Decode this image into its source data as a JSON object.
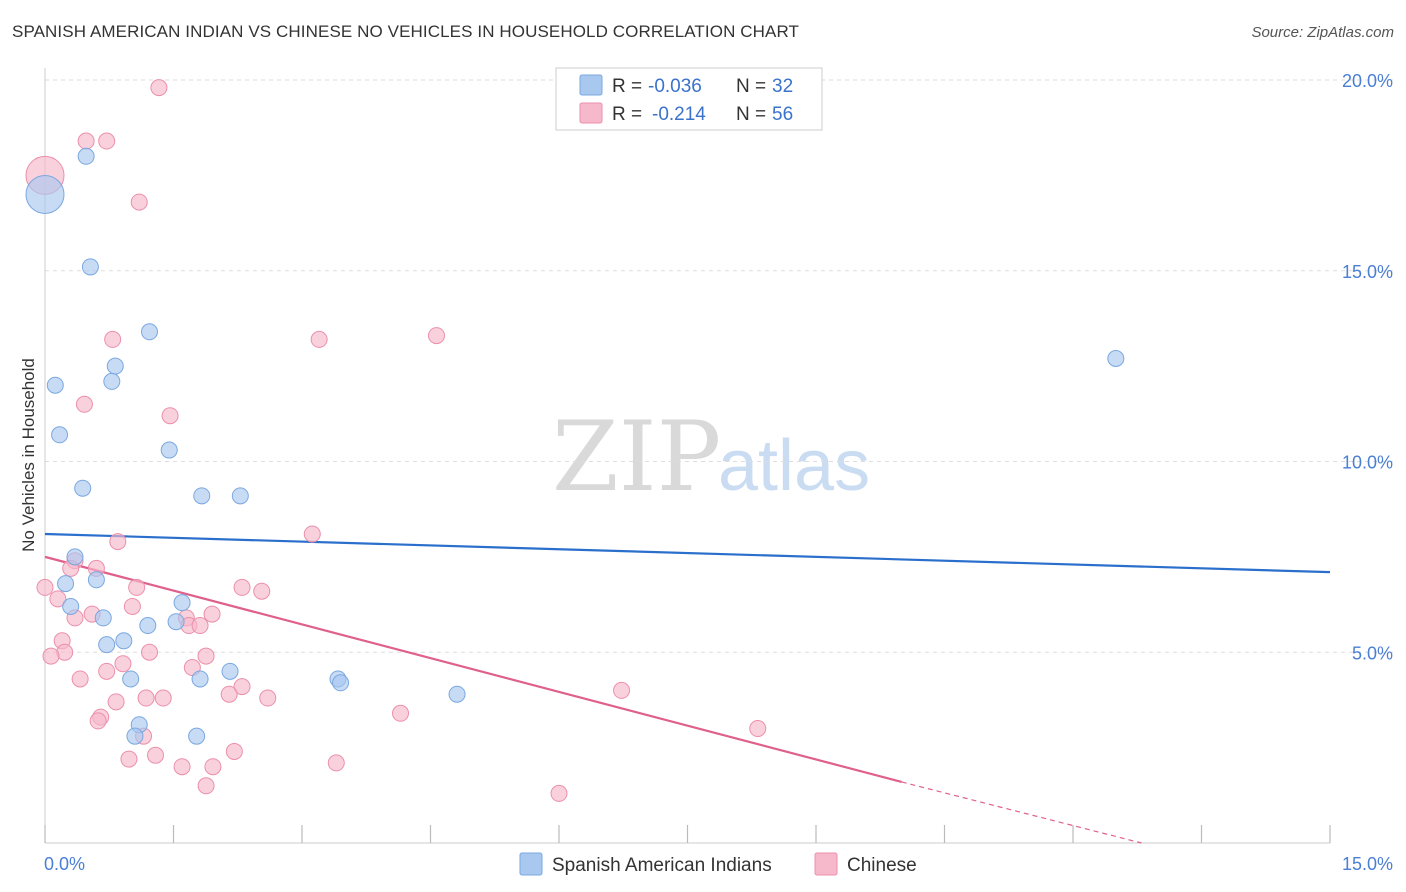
{
  "header": {
    "title": "SPANISH AMERICAN INDIAN VS CHINESE NO VEHICLES IN HOUSEHOLD CORRELATION CHART",
    "source": "Source: ZipAtlas.com"
  },
  "watermark": {
    "zip": "ZIP",
    "atlas": "atlas"
  },
  "stats_legend": {
    "rows": [
      {
        "r_label": "R =",
        "r_value": "-0.036",
        "n_label": "N =",
        "n_value": "32",
        "color": "#a9c8f0"
      },
      {
        "r_label": "R =",
        "r_value": "-0.214",
        "n_label": "N =",
        "n_value": "56",
        "color": "#f6b8cb"
      }
    ]
  },
  "colors": {
    "blue_fill": "#a9c8f0",
    "blue_stroke": "#7aa8e0",
    "blue_line": "#2a6fcc",
    "pink_fill": "#f6b8cb",
    "pink_stroke": "#ec8fab",
    "pink_line": "#e0608c",
    "value_text": "#3a72cc"
  },
  "chart_data": {
    "type": "scatter",
    "title": "SPANISH AMERICAN INDIAN VS CHINESE NO VEHICLES IN HOUSEHOLD CORRELATION CHART",
    "xlabel": "",
    "ylabel": "No Vehicles in Household",
    "xlim": [
      0,
      15
    ],
    "ylim": [
      0,
      20
    ],
    "x_tick_labels": [
      "0.0%",
      "15.0%"
    ],
    "y_ticks": [
      5,
      10,
      15,
      20
    ],
    "y_tick_labels": [
      "5.0%",
      "10.0%",
      "15.0%",
      "20.0%"
    ],
    "grid": true,
    "series": [
      {
        "name": "Spanish American Indians",
        "trend": {
          "x": [
            0,
            15
          ],
          "y": [
            8.1,
            7.1
          ]
        },
        "points": [
          {
            "x": 0.0,
            "y": 17.0,
            "big": true
          },
          {
            "x": 0.48,
            "y": 18.0
          },
          {
            "x": 0.53,
            "y": 15.1
          },
          {
            "x": 1.22,
            "y": 13.4
          },
          {
            "x": 0.12,
            "y": 12.0
          },
          {
            "x": 0.82,
            "y": 12.5
          },
          {
            "x": 0.78,
            "y": 12.1
          },
          {
            "x": 0.17,
            "y": 10.7
          },
          {
            "x": 1.45,
            "y": 10.3
          },
          {
            "x": 0.44,
            "y": 9.3
          },
          {
            "x": 1.83,
            "y": 9.1
          },
          {
            "x": 2.28,
            "y": 9.1
          },
          {
            "x": 0.35,
            "y": 7.5
          },
          {
            "x": 0.24,
            "y": 6.8
          },
          {
            "x": 0.6,
            "y": 6.9
          },
          {
            "x": 0.3,
            "y": 6.2
          },
          {
            "x": 1.6,
            "y": 6.3
          },
          {
            "x": 0.68,
            "y": 5.9
          },
          {
            "x": 1.2,
            "y": 5.7
          },
          {
            "x": 1.53,
            "y": 5.8
          },
          {
            "x": 0.92,
            "y": 5.3
          },
          {
            "x": 0.72,
            "y": 5.2
          },
          {
            "x": 2.16,
            "y": 4.5
          },
          {
            "x": 1.81,
            "y": 4.3
          },
          {
            "x": 1.0,
            "y": 4.3
          },
          {
            "x": 3.42,
            "y": 4.3
          },
          {
            "x": 3.45,
            "y": 4.2
          },
          {
            "x": 4.81,
            "y": 3.9
          },
          {
            "x": 1.1,
            "y": 3.1
          },
          {
            "x": 1.05,
            "y": 2.8
          },
          {
            "x": 1.77,
            "y": 2.8
          },
          {
            "x": 12.5,
            "y": 12.7
          }
        ]
      },
      {
        "name": "Chinese",
        "trend": {
          "x": [
            0,
            10.0
          ],
          "y": [
            7.5,
            1.6
          ]
        },
        "trend_dashed": {
          "x": [
            10.0,
            12.8
          ],
          "y": [
            1.6,
            0.0
          ]
        },
        "points": [
          {
            "x": 0.0,
            "y": 17.5,
            "big": true
          },
          {
            "x": 1.33,
            "y": 19.8
          },
          {
            "x": 0.48,
            "y": 18.4
          },
          {
            "x": 0.72,
            "y": 18.4
          },
          {
            "x": 1.1,
            "y": 16.8
          },
          {
            "x": 0.79,
            "y": 13.2
          },
          {
            "x": 3.2,
            "y": 13.2
          },
          {
            "x": 4.57,
            "y": 13.3
          },
          {
            "x": 0.46,
            "y": 11.5
          },
          {
            "x": 1.46,
            "y": 11.2
          },
          {
            "x": 3.12,
            "y": 8.1
          },
          {
            "x": 0.85,
            "y": 7.9
          },
          {
            "x": 0.35,
            "y": 7.4
          },
          {
            "x": 0.3,
            "y": 7.2
          },
          {
            "x": 0.6,
            "y": 7.2
          },
          {
            "x": 0.0,
            "y": 6.7
          },
          {
            "x": 0.15,
            "y": 6.4
          },
          {
            "x": 1.07,
            "y": 6.7
          },
          {
            "x": 2.3,
            "y": 6.7
          },
          {
            "x": 2.53,
            "y": 6.6
          },
          {
            "x": 1.02,
            "y": 6.2
          },
          {
            "x": 0.55,
            "y": 6.0
          },
          {
            "x": 0.35,
            "y": 5.9
          },
          {
            "x": 1.65,
            "y": 5.9
          },
          {
            "x": 1.95,
            "y": 6.0
          },
          {
            "x": 1.68,
            "y": 5.7
          },
          {
            "x": 1.81,
            "y": 5.7
          },
          {
            "x": 0.2,
            "y": 5.3
          },
          {
            "x": 0.23,
            "y": 5.0
          },
          {
            "x": 0.07,
            "y": 4.9
          },
          {
            "x": 1.22,
            "y": 5.0
          },
          {
            "x": 1.88,
            "y": 4.9
          },
          {
            "x": 0.91,
            "y": 4.7
          },
          {
            "x": 0.72,
            "y": 4.5
          },
          {
            "x": 1.72,
            "y": 4.6
          },
          {
            "x": 0.41,
            "y": 4.3
          },
          {
            "x": 2.3,
            "y": 4.1
          },
          {
            "x": 1.18,
            "y": 3.8
          },
          {
            "x": 1.38,
            "y": 3.8
          },
          {
            "x": 2.15,
            "y": 3.9
          },
          {
            "x": 2.6,
            "y": 3.8
          },
          {
            "x": 0.83,
            "y": 3.7
          },
          {
            "x": 0.65,
            "y": 3.3
          },
          {
            "x": 0.62,
            "y": 3.2
          },
          {
            "x": 4.15,
            "y": 3.4
          },
          {
            "x": 6.73,
            "y": 4.0
          },
          {
            "x": 8.32,
            "y": 3.0
          },
          {
            "x": 1.15,
            "y": 2.8
          },
          {
            "x": 0.98,
            "y": 2.2
          },
          {
            "x": 1.29,
            "y": 2.3
          },
          {
            "x": 2.21,
            "y": 2.4
          },
          {
            "x": 1.6,
            "y": 2.0
          },
          {
            "x": 1.96,
            "y": 2.0
          },
          {
            "x": 3.4,
            "y": 2.1
          },
          {
            "x": 1.88,
            "y": 1.5
          },
          {
            "x": 6.0,
            "y": 1.3
          }
        ]
      }
    ]
  },
  "bottom_legend": {
    "items": [
      {
        "label": "Spanish American Indians",
        "color": "#a9c8f0"
      },
      {
        "label": "Chinese",
        "color": "#f6b8cb"
      }
    ]
  }
}
